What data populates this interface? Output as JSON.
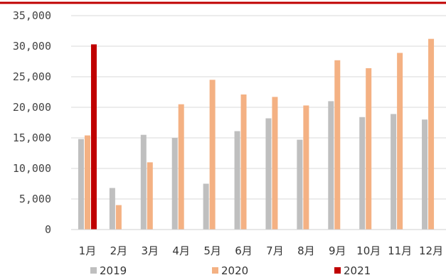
{
  "chart_data": {
    "type": "bar",
    "categories": [
      "1月",
      "2月",
      "3月",
      "4月",
      "5月",
      "6月",
      "7月",
      "8月",
      "9月",
      "10月",
      "11月",
      "12月"
    ],
    "series": [
      {
        "name": "2019",
        "color": "#bfbfbf",
        "values": [
          14800,
          6800,
          15500,
          15000,
          7500,
          16100,
          18200,
          14700,
          21000,
          18400,
          18900,
          18000
        ]
      },
      {
        "name": "2020",
        "color": "#f4b183",
        "values": [
          15400,
          4000,
          11000,
          20500,
          24500,
          22100,
          21700,
          20300,
          27700,
          26400,
          28900,
          31200
        ]
      },
      {
        "name": "2021",
        "color": "#c00000",
        "values": [
          30300,
          null,
          null,
          null,
          null,
          null,
          null,
          null,
          null,
          null,
          null,
          null
        ]
      }
    ],
    "yticks": [
      "0",
      "5,000",
      "10,000",
      "15,000",
      "20,000",
      "25,000",
      "30,000",
      "35,000"
    ],
    "ylim": [
      0,
      35000
    ],
    "grid": true,
    "legend_position": "bottom",
    "top_rule_color": "#c00000"
  }
}
